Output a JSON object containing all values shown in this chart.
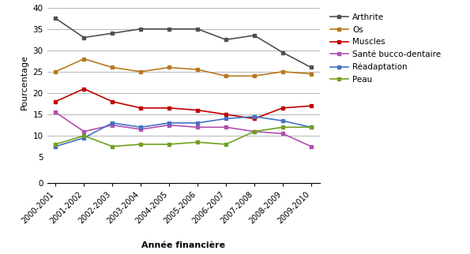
{
  "years": [
    "2000-2001",
    "2001-2002",
    "2002-2003",
    "2003-2004",
    "2004-2005",
    "2005-2006",
    "2006-2007",
    "2007-2008",
    "2008-2009",
    "2009-2010"
  ],
  "series": {
    "Arthrite": [
      37.5,
      33.0,
      34.0,
      35.0,
      35.0,
      35.0,
      32.5,
      33.5,
      29.5,
      26.0
    ],
    "Os": [
      25.0,
      28.0,
      26.0,
      25.0,
      26.0,
      25.5,
      24.0,
      24.0,
      25.0,
      24.5
    ],
    "Muscles": [
      18.0,
      21.0,
      18.0,
      16.5,
      16.5,
      16.0,
      15.0,
      14.0,
      16.5,
      17.0
    ],
    "Santé bucco-dentaire": [
      15.5,
      11.0,
      12.5,
      11.5,
      12.5,
      12.0,
      12.0,
      11.0,
      10.5,
      7.5
    ],
    "Réadaptation": [
      7.5,
      9.5,
      13.0,
      12.0,
      13.0,
      13.0,
      14.0,
      14.5,
      13.5,
      12.0
    ],
    "Peau": [
      8.0,
      10.0,
      7.5,
      8.0,
      8.0,
      8.5,
      8.0,
      11.0,
      12.0,
      12.0
    ]
  },
  "colors": {
    "Arthrite": "#505050",
    "Os": "#B87820",
    "Muscles": "#C00000",
    "Santé bucco-dentaire": "#B050B0",
    "Réadaptation": "#4472C4",
    "Peau": "#70A020"
  },
  "ylabel": "Pourcentage",
  "xlabel": "Année financière",
  "ylim_main": [
    5,
    40
  ],
  "ylim_zero": [
    0,
    0.5
  ],
  "yticks_main": [
    5,
    10,
    15,
    20,
    25,
    30,
    35,
    40
  ],
  "yticks_zero": [
    0
  ],
  "figsize": [
    5.95,
    3.22
  ],
  "dpi": 100
}
